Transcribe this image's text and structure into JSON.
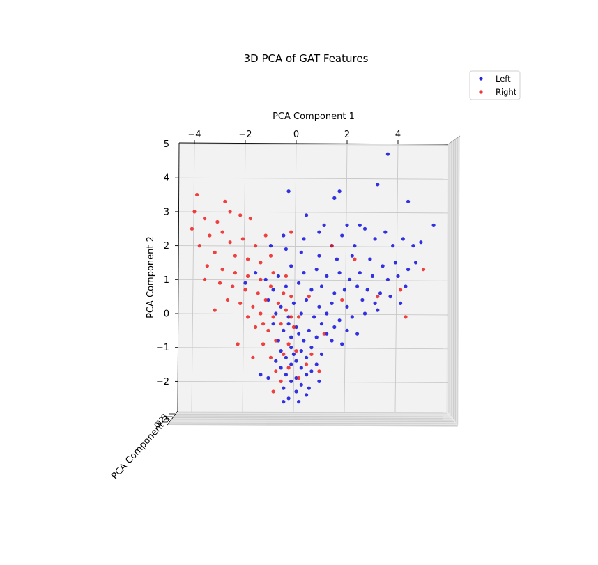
{
  "chart_data": {
    "type": "scatter",
    "projection": "3d",
    "title": "3D PCA of GAT Features",
    "xlabel": "PCA Component 1",
    "ylabel": "PCA Component 2",
    "zlabel": "PCA Component 3",
    "xlim": [
      -4.6,
      5.8
    ],
    "ylim": [
      -2.9,
      5.1
    ],
    "xticks": [
      -4,
      -2,
      0,
      2,
      4
    ],
    "yticks": [
      5,
      4,
      3,
      2,
      1,
      0,
      -1,
      -2
    ],
    "zticks": [
      "3",
      "2",
      "1",
      "0"
    ],
    "grid": true,
    "legend_position": "top-right",
    "colors": {
      "Left": "#0000dd",
      "Right": "#ee1111",
      "pane": "#f2f2f2",
      "grid": "#c8c8c8"
    },
    "series": [
      {
        "name": "Left",
        "points": [
          [
            3.6,
            4.7
          ],
          [
            -0.3,
            3.6
          ],
          [
            1.7,
            3.6
          ],
          [
            3.2,
            3.8
          ],
          [
            1.5,
            3.4
          ],
          [
            4.4,
            3.3
          ],
          [
            5.4,
            2.6
          ],
          [
            0.4,
            2.9
          ],
          [
            1.1,
            2.6
          ],
          [
            2.0,
            2.6
          ],
          [
            2.5,
            2.6
          ],
          [
            0.9,
            2.4
          ],
          [
            1.8,
            2.3
          ],
          [
            2.7,
            2.5
          ],
          [
            3.1,
            2.2
          ],
          [
            3.5,
            2.4
          ],
          [
            4.2,
            2.2
          ],
          [
            4.6,
            2.0
          ],
          [
            4.9,
            2.1
          ],
          [
            3.8,
            2.0
          ],
          [
            2.3,
            2.0
          ],
          [
            1.4,
            2.0
          ],
          [
            0.3,
            2.2
          ],
          [
            -0.5,
            2.3
          ],
          [
            -1.0,
            2.0
          ],
          [
            -0.4,
            1.9
          ],
          [
            0.2,
            1.8
          ],
          [
            0.9,
            1.7
          ],
          [
            1.6,
            1.6
          ],
          [
            2.2,
            1.7
          ],
          [
            2.9,
            1.6
          ],
          [
            3.4,
            1.4
          ],
          [
            3.9,
            1.5
          ],
          [
            4.4,
            1.3
          ],
          [
            4.7,
            1.5
          ],
          [
            4.0,
            1.1
          ],
          [
            3.6,
            1.0
          ],
          [
            3.0,
            1.1
          ],
          [
            2.5,
            1.2
          ],
          [
            2.1,
            1.0
          ],
          [
            1.7,
            1.2
          ],
          [
            1.2,
            1.1
          ],
          [
            0.8,
            1.3
          ],
          [
            0.3,
            1.2
          ],
          [
            -0.2,
            1.4
          ],
          [
            -0.7,
            1.1
          ],
          [
            -1.2,
            1.0
          ],
          [
            -1.6,
            1.2
          ],
          [
            -2.0,
            0.9
          ],
          [
            -0.9,
            0.7
          ],
          [
            -0.4,
            0.8
          ],
          [
            0.1,
            0.9
          ],
          [
            0.6,
            0.7
          ],
          [
            1.0,
            0.8
          ],
          [
            1.5,
            0.6
          ],
          [
            1.9,
            0.7
          ],
          [
            2.4,
            0.8
          ],
          [
            2.8,
            0.7
          ],
          [
            3.3,
            0.6
          ],
          [
            3.7,
            0.5
          ],
          [
            4.3,
            0.8
          ],
          [
            4.1,
            0.3
          ],
          [
            3.1,
            0.3
          ],
          [
            2.6,
            0.4
          ],
          [
            2.0,
            0.2
          ],
          [
            1.4,
            0.3
          ],
          [
            0.9,
            0.2
          ],
          [
            0.4,
            0.4
          ],
          [
            -0.1,
            0.3
          ],
          [
            -0.6,
            0.2
          ],
          [
            -1.1,
            0.4
          ],
          [
            -0.8,
            0.0
          ],
          [
            -0.3,
            -0.1
          ],
          [
            0.2,
            0.0
          ],
          [
            0.7,
            -0.1
          ],
          [
            1.2,
            0.0
          ],
          [
            1.7,
            -0.2
          ],
          [
            2.2,
            -0.1
          ],
          [
            2.7,
            0.0
          ],
          [
            3.2,
            0.1
          ],
          [
            2.0,
            -0.5
          ],
          [
            1.5,
            -0.4
          ],
          [
            1.0,
            -0.3
          ],
          [
            0.5,
            -0.5
          ],
          [
            0.0,
            -0.4
          ],
          [
            -0.5,
            -0.5
          ],
          [
            -0.9,
            -0.3
          ],
          [
            -0.7,
            -0.8
          ],
          [
            -0.2,
            -0.7
          ],
          [
            0.3,
            -0.8
          ],
          [
            0.8,
            -0.7
          ],
          [
            1.2,
            -0.6
          ],
          [
            -0.6,
            -1.1
          ],
          [
            -0.2,
            -1.0
          ],
          [
            0.2,
            -1.1
          ],
          [
            0.6,
            -1.0
          ],
          [
            1.0,
            -1.2
          ],
          [
            -0.8,
            -1.4
          ],
          [
            -0.4,
            -1.3
          ],
          [
            0.0,
            -1.4
          ],
          [
            0.4,
            -1.3
          ],
          [
            0.8,
            -1.5
          ],
          [
            -0.6,
            -1.6
          ],
          [
            -0.2,
            -1.5
          ],
          [
            0.2,
            -1.6
          ],
          [
            0.6,
            -1.7
          ],
          [
            -0.4,
            -1.8
          ],
          [
            0.0,
            -1.9
          ],
          [
            0.4,
            -1.8
          ],
          [
            -0.2,
            -2.0
          ],
          [
            0.2,
            -2.1
          ],
          [
            -0.5,
            -2.2
          ],
          [
            0.0,
            -2.3
          ],
          [
            0.5,
            -2.2
          ],
          [
            -0.3,
            -2.5
          ],
          [
            0.1,
            -2.6
          ],
          [
            -0.5,
            -2.6
          ],
          [
            -1.4,
            -1.8
          ],
          [
            -1.1,
            -1.9
          ],
          [
            0.9,
            -2.0
          ],
          [
            -0.1,
            -1.2
          ],
          [
            0.1,
            -0.6
          ],
          [
            -0.3,
            -0.3
          ],
          [
            1.4,
            -0.8
          ],
          [
            2.4,
            -0.6
          ],
          [
            1.8,
            -0.9
          ],
          [
            0.4,
            -2.4
          ]
        ]
      },
      {
        "name": "Right",
        "points": [
          [
            -3.9,
            3.5
          ],
          [
            -4.0,
            3.0
          ],
          [
            -3.6,
            2.8
          ],
          [
            -3.1,
            2.7
          ],
          [
            -2.6,
            3.0
          ],
          [
            -2.2,
            2.9
          ],
          [
            -1.8,
            2.8
          ],
          [
            -2.9,
            2.4
          ],
          [
            -3.4,
            2.3
          ],
          [
            -3.8,
            2.0
          ],
          [
            -3.2,
            1.8
          ],
          [
            -2.6,
            2.1
          ],
          [
            -2.1,
            2.2
          ],
          [
            -1.6,
            2.0
          ],
          [
            -1.2,
            2.3
          ],
          [
            -2.4,
            1.7
          ],
          [
            -1.9,
            1.6
          ],
          [
            -1.4,
            1.5
          ],
          [
            -1.0,
            1.7
          ],
          [
            -3.5,
            1.4
          ],
          [
            -2.9,
            1.3
          ],
          [
            -2.4,
            1.2
          ],
          [
            -1.9,
            1.1
          ],
          [
            -1.4,
            1.0
          ],
          [
            -0.9,
            1.2
          ],
          [
            -0.4,
            1.1
          ],
          [
            -3.0,
            0.9
          ],
          [
            -2.5,
            0.8
          ],
          [
            -2.0,
            0.7
          ],
          [
            -1.5,
            0.6
          ],
          [
            -1.0,
            0.8
          ],
          [
            -0.5,
            0.6
          ],
          [
            -2.7,
            0.4
          ],
          [
            -2.2,
            0.3
          ],
          [
            -1.7,
            0.2
          ],
          [
            -1.2,
            0.4
          ],
          [
            -0.7,
            0.3
          ],
          [
            -0.2,
            0.5
          ],
          [
            -1.9,
            -0.1
          ],
          [
            -1.4,
            0.0
          ],
          [
            -0.9,
            -0.1
          ],
          [
            -0.4,
            0.1
          ],
          [
            0.1,
            -0.1
          ],
          [
            -3.2,
            0.1
          ],
          [
            -1.6,
            -0.4
          ],
          [
            -1.1,
            -0.5
          ],
          [
            -0.6,
            -0.3
          ],
          [
            -0.1,
            -0.4
          ],
          [
            -1.3,
            -0.9
          ],
          [
            -0.8,
            -0.8
          ],
          [
            -0.3,
            -0.9
          ],
          [
            -1.0,
            -1.3
          ],
          [
            -0.5,
            -1.2
          ],
          [
            0.0,
            -1.1
          ],
          [
            -0.8,
            -1.7
          ],
          [
            -0.3,
            -1.6
          ],
          [
            0.4,
            -1.5
          ],
          [
            -0.6,
            -2.0
          ],
          [
            0.1,
            -1.9
          ],
          [
            0.6,
            -1.2
          ],
          [
            1.1,
            -0.6
          ],
          [
            1.8,
            0.4
          ],
          [
            2.3,
            1.6
          ],
          [
            3.2,
            0.5
          ],
          [
            4.1,
            0.7
          ],
          [
            4.3,
            -0.1
          ],
          [
            5.0,
            1.3
          ],
          [
            1.4,
            2.0
          ],
          [
            0.5,
            0.5
          ],
          [
            -0.2,
            2.4
          ],
          [
            -2.8,
            3.3
          ],
          [
            -3.6,
            1.0
          ],
          [
            -2.3,
            -0.9
          ],
          [
            -1.7,
            -1.3
          ],
          [
            0.9,
            -1.7
          ],
          [
            -0.9,
            -2.3
          ],
          [
            -1.3,
            -0.3
          ],
          [
            -0.2,
            -0.1
          ],
          [
            -4.1,
            2.5
          ]
        ]
      }
    ]
  }
}
